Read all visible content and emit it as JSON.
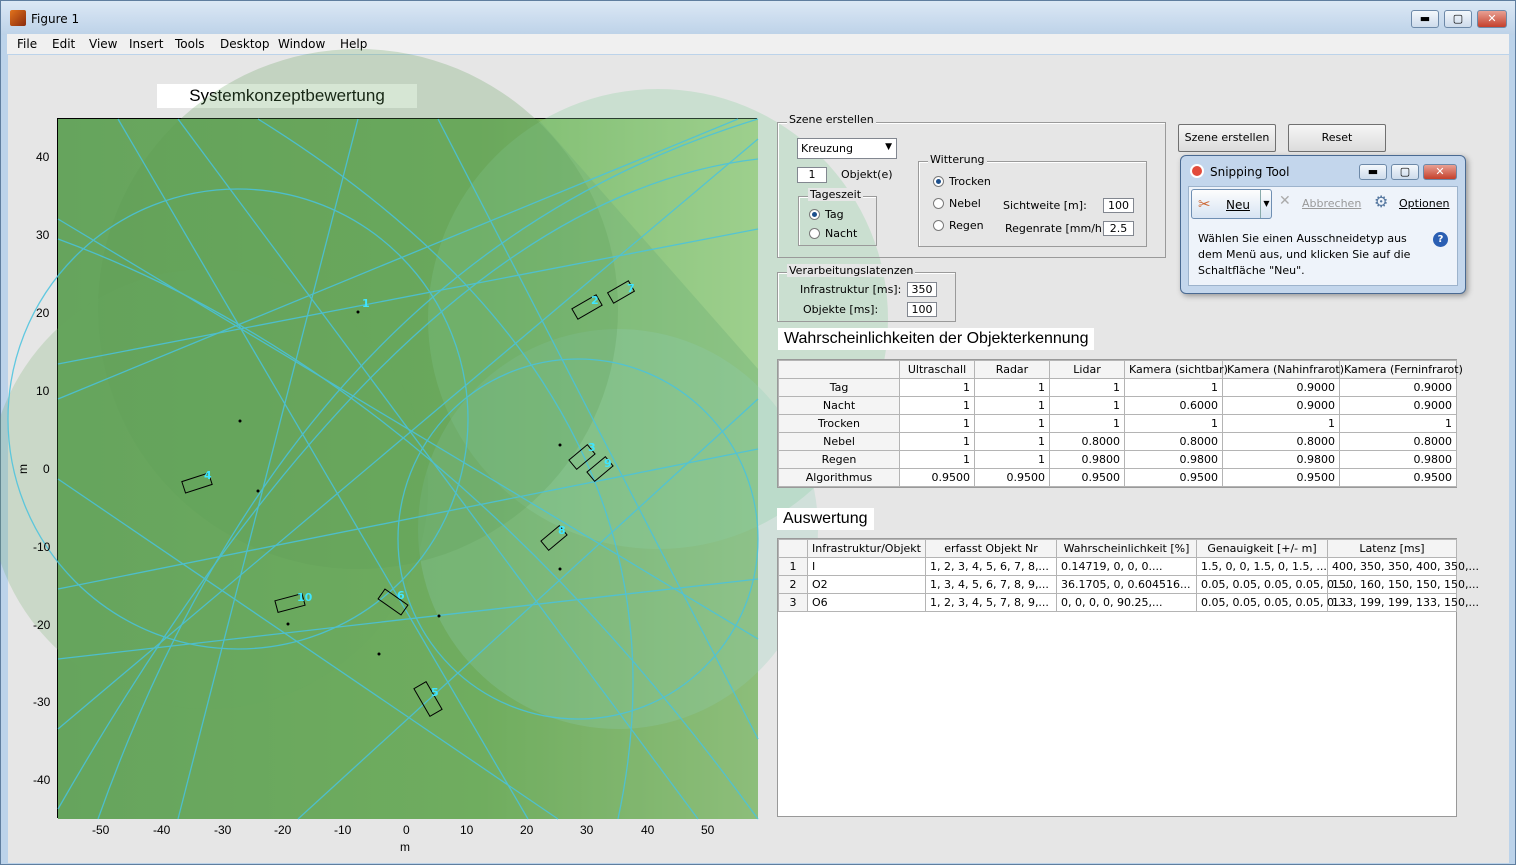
{
  "window": {
    "title": "Figure 1",
    "buttons": {
      "minimize": "▬",
      "maximize": "▢",
      "close": "✕"
    }
  },
  "menu": [
    "File",
    "Edit",
    "View",
    "Insert",
    "Tools",
    "Desktop",
    "Window",
    "Help"
  ],
  "plot": {
    "title": "Systemkonzeptbewertung",
    "xlabel": "m",
    "ylabel": "m",
    "xticks": [
      "-50",
      "-40",
      "-30",
      "-20",
      "-10",
      "0",
      "10",
      "20",
      "30",
      "40",
      "50"
    ],
    "yticks": [
      "40",
      "30",
      "20",
      "10",
      "0",
      "-10",
      "-20",
      "-30",
      "-40"
    ],
    "object_labels": [
      "1",
      "2",
      "3",
      "4",
      "5",
      "6",
      "7",
      "8",
      "9",
      "10"
    ]
  },
  "szene": {
    "legend": "Szene erstellen",
    "scene_select": "Kreuzung",
    "objects_value": "1",
    "objects_label": "Objekt(e)",
    "tageszeit": {
      "legend": "Tageszeit",
      "tag": "Tag",
      "nacht": "Nacht"
    },
    "witterung": {
      "legend": "Witterung",
      "trocken": "Trocken",
      "nebel": "Nebel",
      "regen": "Regen",
      "sichtweite_label": "Sichtweite [m]:",
      "sichtweite": "100",
      "regenrate_label": "Regenrate [mm/h]:",
      "regenrate": "2.5"
    }
  },
  "buttons": {
    "szene_erstellen": "Szene erstellen",
    "reset": "Reset"
  },
  "latenzen": {
    "legend": "Verarbeitungslatenzen",
    "infra_label": "Infrastruktur [ms]:",
    "infra": "350",
    "obj_label": "Objekte [ms]:",
    "obj": "100"
  },
  "prob": {
    "title": "Wahrscheinlichkeiten der Objekterkennung",
    "columns": [
      "Ultraschall",
      "Radar",
      "Lidar",
      "Kamera (sichtbar)",
      "Kamera (Nahinfrarot)",
      "Kamera (Ferninfrarot)"
    ],
    "rows": [
      {
        "name": "Tag",
        "values": [
          "1",
          "1",
          "1",
          "1",
          "0.9000",
          "0.9000"
        ]
      },
      {
        "name": "Nacht",
        "values": [
          "1",
          "1",
          "1",
          "0.6000",
          "0.9000",
          "0.9000"
        ]
      },
      {
        "name": "Trocken",
        "values": [
          "1",
          "1",
          "1",
          "1",
          "1",
          "1"
        ]
      },
      {
        "name": "Nebel",
        "values": [
          "1",
          "1",
          "0.8000",
          "0.8000",
          "0.8000",
          "0.8000"
        ]
      },
      {
        "name": "Regen",
        "values": [
          "1",
          "1",
          "0.9800",
          "0.9800",
          "0.9800",
          "0.9800"
        ]
      },
      {
        "name": "Algorithmus",
        "values": [
          "0.9500",
          "0.9500",
          "0.9500",
          "0.9500",
          "0.9500",
          "0.9500"
        ]
      }
    ]
  },
  "eval": {
    "title": "Auswertung",
    "columns": [
      "Infrastruktur/Objekt",
      "erfasst Objekt Nr",
      "Wahrscheinlichkeit [%]",
      "Genauigkeit [+/- m]",
      "Latenz [ms]"
    ],
    "rows": [
      {
        "n": "1",
        "values": [
          "I",
          "1, 2, 3, 4, 5, 6, 7, 8,...",
          "0.14719,       0,       0, 0....",
          "1.5,  0,   0, 1.5,   0, 1.5, ...",
          "400, 350, 350, 400, 350,..."
        ]
      },
      {
        "n": "2",
        "values": [
          "O2",
          "1, 3, 4, 5, 6, 7, 8, 9,...",
          "36.1705,        0, 0.604516...",
          "0.05, 0.05, 0.05, 0.05, 0....",
          "150, 160, 150, 150, 150,..."
        ]
      },
      {
        "n": "3",
        "values": [
          "O6",
          "1, 2, 3, 4, 5, 7, 8, 9,...",
          "0,     0,     0,    0, 90.25,...",
          "0.05, 0.05, 0.05, 0.05, 0....",
          "133, 199, 199, 133, 150,..."
        ]
      }
    ]
  },
  "snipping": {
    "title": "Snipping Tool",
    "neu": "Neu",
    "abbrechen": "Abbrechen",
    "optionen": "Optionen",
    "text": "Wählen Sie einen Ausschneidetyp aus dem Menü aus, und klicken Sie auf die Schaltfläche \"Neu\"."
  }
}
